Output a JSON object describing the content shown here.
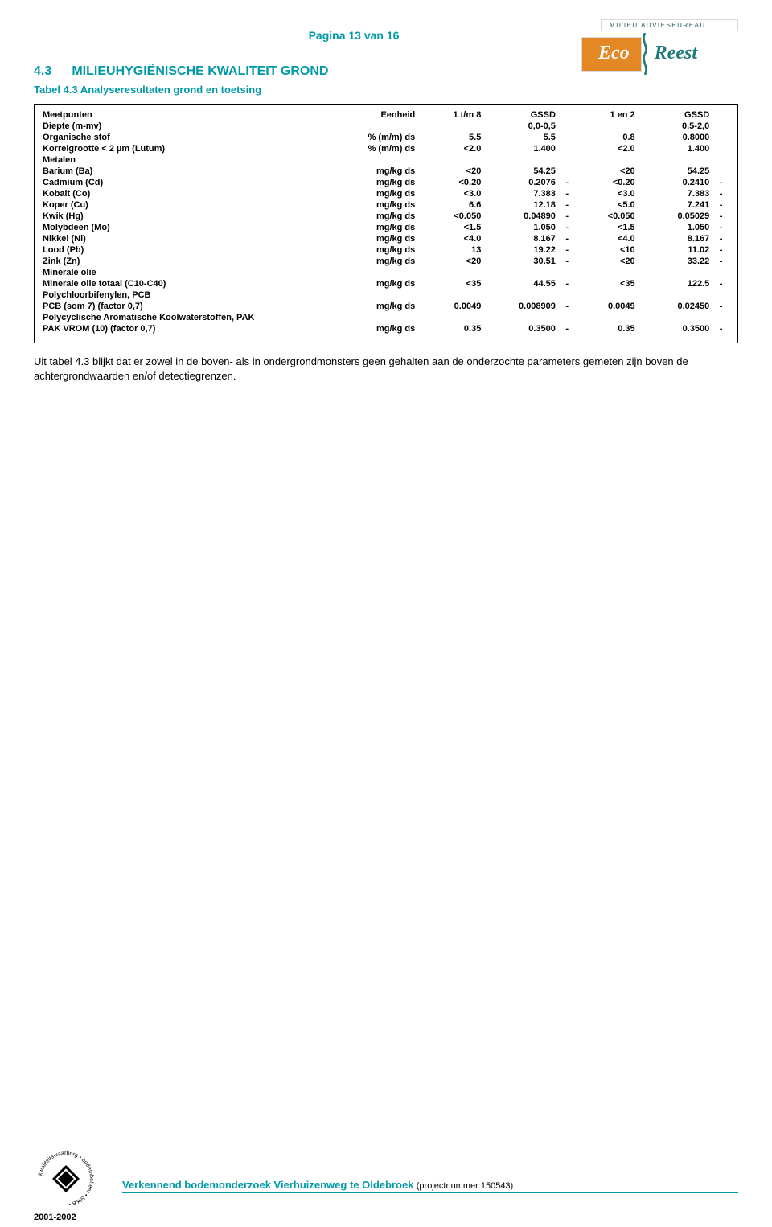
{
  "page_header": "Pagina 13 van 16",
  "logo": {
    "top_text": "MILIEU  ADVIESBUREAU",
    "left": "Eco",
    "right": "Reest"
  },
  "section": {
    "number": "4.3",
    "title": "MILIEUHYGIËNISCHE KWALITEIT GROND"
  },
  "tabel_caption": "Tabel 4.3 Analyseresultaten grond en toetsing",
  "header": {
    "meetpunten": "Meetpunten",
    "eenheid": "Eenheid",
    "h1": "1 t/m 8",
    "g1": "GSSD",
    "h2": "1 en 2",
    "g2": "GSSD"
  },
  "top_rows": [
    {
      "label": "Diepte (m-mv)",
      "unit": "",
      "v1": "",
      "g1": "0,0-0,5",
      "t1": "",
      "v2": "",
      "g2": "0,5-2,0",
      "t2": ""
    },
    {
      "label": "Organische stof",
      "unit": "% (m/m) ds",
      "v1": "5.5",
      "g1": "5.5",
      "t1": "",
      "v2": "0.8",
      "g2": "0.8000",
      "t2": ""
    },
    {
      "label": "Korrelgrootte < 2 µm (Lutum)",
      "unit": "% (m/m) ds",
      "v1": "<2.0",
      "g1": "1.400",
      "t1": "",
      "v2": "<2.0",
      "g2": "1.400",
      "t2": ""
    }
  ],
  "groups": [
    {
      "title": "Metalen",
      "rows": [
        {
          "label": "Barium (Ba)",
          "unit": "mg/kg ds",
          "v1": "<20",
          "g1": "54.25",
          "t1": "",
          "v2": "<20",
          "g2": "54.25",
          "t2": ""
        },
        {
          "label": "Cadmium (Cd)",
          "unit": "mg/kg ds",
          "v1": "<0.20",
          "g1": "0.2076",
          "t1": "-",
          "v2": "<0.20",
          "g2": "0.2410",
          "t2": "-"
        },
        {
          "label": "Kobalt (Co)",
          "unit": "mg/kg ds",
          "v1": "<3.0",
          "g1": "7.383",
          "t1": "-",
          "v2": "<3.0",
          "g2": "7.383",
          "t2": "-"
        },
        {
          "label": "Koper (Cu)",
          "unit": "mg/kg ds",
          "v1": "6.6",
          "g1": "12.18",
          "t1": "-",
          "v2": "<5.0",
          "g2": "7.241",
          "t2": "-"
        },
        {
          "label": "Kwik (Hg)",
          "unit": "mg/kg ds",
          "v1": "<0.050",
          "g1": "0.04890",
          "t1": "-",
          "v2": "<0.050",
          "g2": "0.05029",
          "t2": "-"
        },
        {
          "label": "Molybdeen (Mo)",
          "unit": "mg/kg ds",
          "v1": "<1.5",
          "g1": "1.050",
          "t1": "-",
          "v2": "<1.5",
          "g2": "1.050",
          "t2": "-"
        },
        {
          "label": "Nikkel (Ni)",
          "unit": "mg/kg ds",
          "v1": "<4.0",
          "g1": "8.167",
          "t1": "-",
          "v2": "<4.0",
          "g2": "8.167",
          "t2": "-"
        },
        {
          "label": "Lood (Pb)",
          "unit": "mg/kg ds",
          "v1": "13",
          "g1": "19.22",
          "t1": "-",
          "v2": "<10",
          "g2": "11.02",
          "t2": "-"
        },
        {
          "label": "Zink (Zn)",
          "unit": "mg/kg ds",
          "v1": "<20",
          "g1": "30.51",
          "t1": "-",
          "v2": "<20",
          "g2": "33.22",
          "t2": "-"
        }
      ]
    },
    {
      "title": "Minerale olie",
      "rows": [
        {
          "label": "Minerale olie totaal (C10-C40)",
          "unit": "mg/kg ds",
          "v1": "<35",
          "g1": "44.55",
          "t1": "-",
          "v2": "<35",
          "g2": "122.5",
          "t2": "-"
        }
      ]
    },
    {
      "title": "Polychloorbifenylen, PCB",
      "rows": [
        {
          "label": "PCB (som 7) (factor 0,7)",
          "unit": "mg/kg ds",
          "v1": "0.0049",
          "g1": "0.008909",
          "t1": "-",
          "v2": "0.0049",
          "g2": "0.02450",
          "t2": "-"
        }
      ]
    },
    {
      "title": "Polycyclische Aromatische Koolwaterstoffen, PAK",
      "rows": [
        {
          "label": "PAK VROM (10) (factor 0,7)",
          "unit": "mg/kg ds",
          "v1": "0.35",
          "g1": "0.3500",
          "t1": "-",
          "v2": "0.35",
          "g2": "0.3500",
          "t2": "-"
        }
      ]
    }
  ],
  "body_text": "Uit tabel 4.3 blijkt dat er zowel in de boven- als in ondergrondmonsters geen gehalten aan de onderzochte parameters gemeten zijn boven de achtergrondwaarden en/of detectiegrenzen.",
  "footer": {
    "title": "Verkennend bodemonderzoek Vierhuizenweg te Oldebroek",
    "project": "(projectnummer:150543)"
  },
  "years": "2001-2002",
  "colors": {
    "teal": "#0099a8",
    "orange": "#e48826",
    "dark_teal": "#1f7a7a"
  }
}
